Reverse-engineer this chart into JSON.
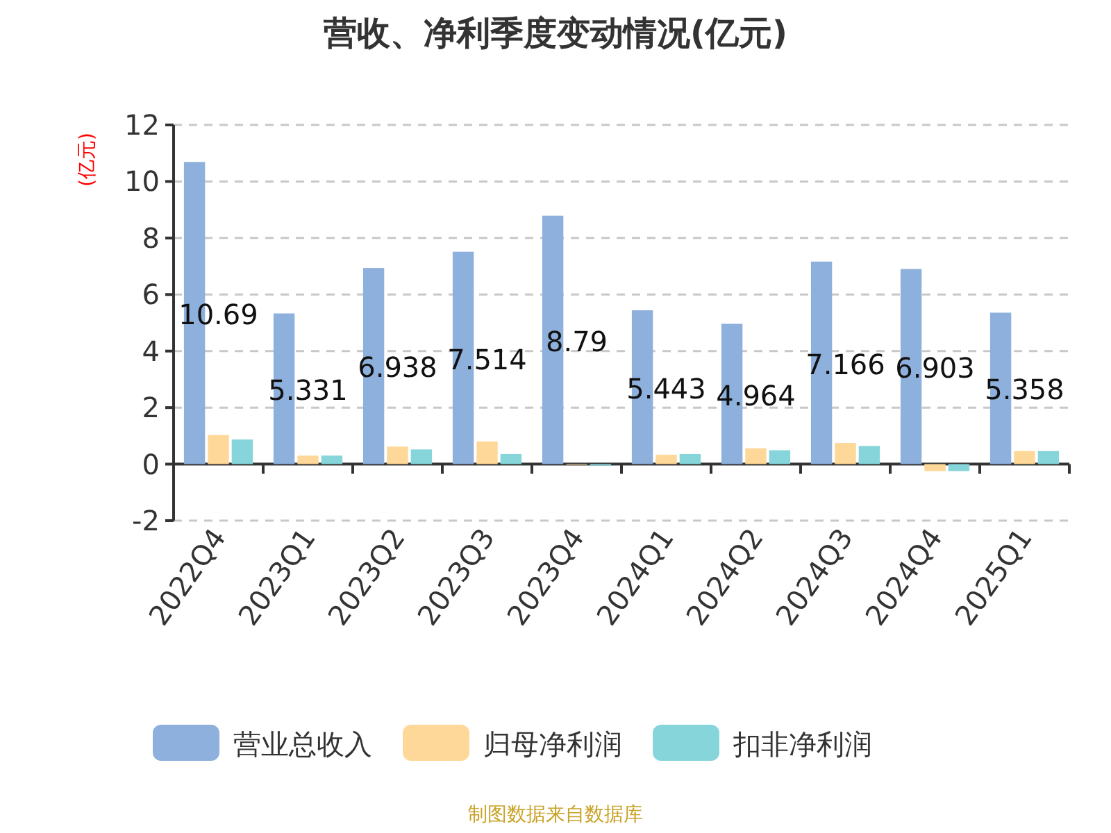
{
  "chart_data": {
    "type": "bar",
    "title": "营收、净利季度变动情况(亿元)",
    "ylabel": "(亿元)",
    "categories": [
      "2022Q4",
      "2023Q1",
      "2023Q2",
      "2023Q3",
      "2023Q4",
      "2024Q1",
      "2024Q2",
      "2024Q3",
      "2024Q4",
      "2025Q1"
    ],
    "series": [
      {
        "name": "营业总收入",
        "color": "#8eb0dc",
        "values": [
          10.69,
          5.331,
          6.938,
          7.514,
          8.79,
          5.443,
          4.964,
          7.166,
          6.903,
          5.358
        ],
        "value_labels": [
          "10.69",
          "5.331",
          "6.938",
          "7.514",
          "8.79",
          "5.443",
          "4.964",
          "7.166",
          "6.903",
          "5.358"
        ]
      },
      {
        "name": "归母净利润",
        "color": "#fed898",
        "values": [
          1.03,
          0.3,
          0.62,
          0.8,
          0,
          0.33,
          0.56,
          0.75,
          -0.25,
          0.46
        ]
      },
      {
        "name": "扣非净利润",
        "color": "#86d5da",
        "values": [
          0.87,
          0.3,
          0.52,
          0.36,
          -0.05,
          0.36,
          0.49,
          0.64,
          -0.25,
          0.46
        ]
      }
    ],
    "ylim": [
      -2,
      12
    ],
    "yticks": [
      -2,
      0,
      2,
      4,
      6,
      8,
      10,
      12
    ],
    "grid": "y",
    "legend": "bottom",
    "annotations": [
      "制图数据来自数据库"
    ]
  }
}
